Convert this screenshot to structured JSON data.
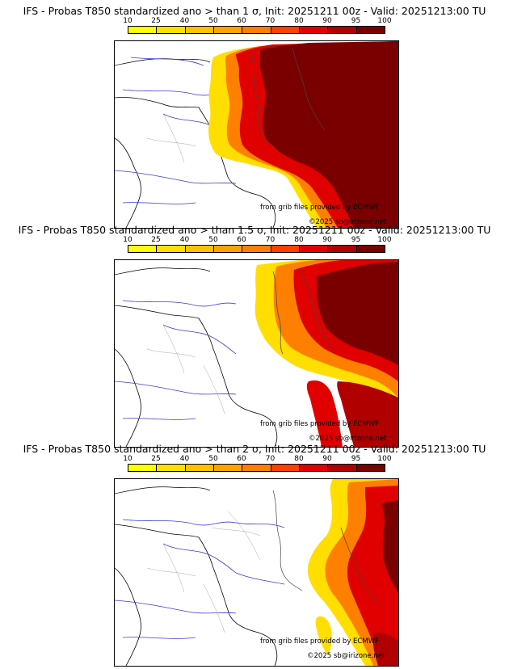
{
  "colorbar": {
    "labels": [
      "10",
      "25",
      "40",
      "50",
      "60",
      "70",
      "80",
      "90",
      "95",
      "100"
    ],
    "colors": [
      "#ffff00",
      "#ffde00",
      "#ffc000",
      "#ffa200",
      "#ff8000",
      "#ff4000",
      "#e00000",
      "#b00000",
      "#7a0000"
    ]
  },
  "panels": [
    {
      "title": "IFS - Probas T850  standardized ano > than 1 σ, Init: 20251211 00z - Valid: 20251213:00 TU",
      "credit_source": "from grib files provided by ECMWF",
      "credit_copyright": "©2025 sb@irizone.net"
    },
    {
      "title": "IFS - Probas T850  standardized ano > than 1.5 σ, Init: 20251211 00z - Valid: 20251213:00 TU",
      "credit_source": "from grib files provided by ECMWF",
      "credit_copyright": "©2025 sb@irizone.net"
    },
    {
      "title": "IFS - Probas T850  standardized ano > than 2 σ, Init: 20251211 00z - Valid: 20251213:00 TU",
      "credit_source": "from grib files provided by ECMWF",
      "credit_copyright": "©2025 sb@irizone.net"
    }
  ]
}
